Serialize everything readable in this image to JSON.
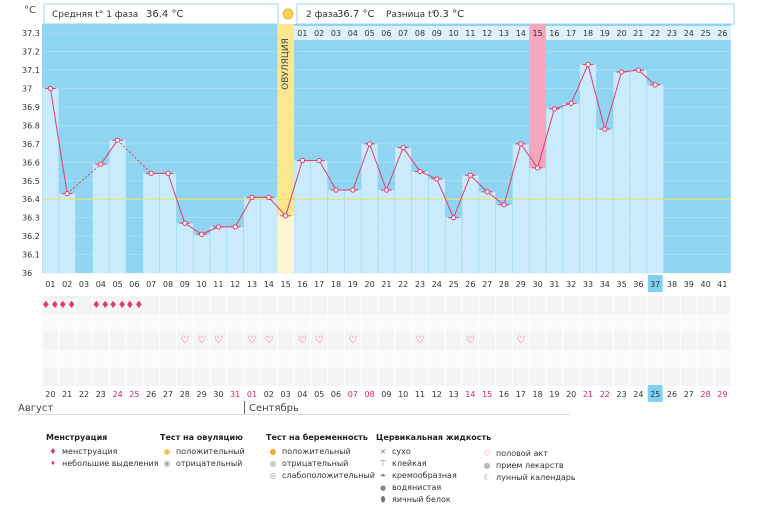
{
  "header": {
    "unit": "°C",
    "phase1_label": "Средняя t° 1 фаза",
    "phase1_value": "36.4 °C",
    "phase2_label": "2 фаза",
    "phase2_value": "36.7 °C",
    "diff_label": "Разница t°",
    "diff_value": "0.3 °C",
    "ovulation_label": "ОВУЛЯЦИЯ"
  },
  "chart_data": {
    "type": "line",
    "title": "",
    "ylabel": "°C",
    "ylim": [
      36,
      37.35
    ],
    "yticks": [
      "37.3",
      "37.2",
      "37.1",
      "37",
      "36.9",
      "36.8",
      "36.7",
      "36.6",
      "36.5",
      "36.4",
      "36.3",
      "36.2",
      "36.1",
      "36"
    ],
    "cycle_days": [
      "01",
      "02",
      "03",
      "04",
      "05",
      "06",
      "07",
      "08",
      "09",
      "10",
      "11",
      "12",
      "13",
      "14",
      "15",
      "16",
      "17",
      "18",
      "19",
      "20",
      "21",
      "22",
      "23",
      "24",
      "25",
      "26",
      "27",
      "28",
      "29",
      "30",
      "31",
      "32",
      "33",
      "34",
      "35",
      "36",
      "37",
      "38",
      "39",
      "40",
      "41"
    ],
    "temperatures": [
      37.0,
      36.43,
      null,
      36.59,
      36.72,
      null,
      36.54,
      36.54,
      36.27,
      36.21,
      36.25,
      36.25,
      36.41,
      36.41,
      36.31,
      36.61,
      36.61,
      36.45,
      36.45,
      36.7,
      36.45,
      36.68,
      36.55,
      36.51,
      36.3,
      36.53,
      36.44,
      36.37,
      36.7,
      36.57,
      36.89,
      36.92,
      37.13,
      36.78,
      37.09,
      37.1,
      37.02,
      null,
      null,
      null,
      null
    ],
    "coverline": 36.4,
    "ovulation_day": "15",
    "current_day": "37",
    "phase2_days": [
      "01",
      "02",
      "03",
      "04",
      "05",
      "06",
      "07",
      "08",
      "09",
      "10",
      "11",
      "12",
      "13",
      "14",
      "15",
      "16",
      "17",
      "18",
      "19",
      "20",
      "21",
      "22",
      "23",
      "24",
      "25",
      "26"
    ],
    "phase2_highlight_day": "15",
    "dates": [
      "20",
      "21",
      "22",
      "23",
      "24",
      "25",
      "26",
      "27",
      "28",
      "29",
      "30",
      "31",
      "01",
      "02",
      "03",
      "04",
      "05",
      "06",
      "07",
      "08",
      "09",
      "10",
      "11",
      "12",
      "13",
      "14",
      "15",
      "16",
      "17",
      "18",
      "19",
      "20",
      "21",
      "22",
      "23",
      "24",
      "25",
      "26",
      "27",
      "28",
      "29"
    ],
    "weekend_dates_idx": [
      4,
      5,
      11,
      12,
      18,
      19,
      25,
      26,
      32,
      33,
      39,
      40
    ],
    "today_date": "25",
    "menstruation_days": [
      "01",
      "02",
      "04",
      "05",
      "06"
    ],
    "intercourse_days": [
      "09",
      "10",
      "11",
      "13",
      "14",
      "16",
      "17",
      "19",
      "23",
      "26",
      "29"
    ]
  },
  "months": {
    "first": "Август",
    "second": "Сентябрь"
  },
  "legend": {
    "menstruation": {
      "title": "Менструация",
      "items": [
        "менструация",
        "небольшие выделения"
      ]
    },
    "ovulation_test": {
      "title": "Тест на овуляцию",
      "items": [
        "положительный",
        "отрицательный"
      ]
    },
    "pregnancy_test": {
      "title": "Тест на беременность",
      "items": [
        "положительный",
        "отрицательный",
        "слабоположительный"
      ]
    },
    "cervical": {
      "title": "Цервикальная жидкость",
      "items": [
        "сухо",
        "клейкая",
        "кремообразная",
        "водянистая",
        "яичный белок"
      ]
    },
    "other": {
      "items": [
        "половой акт",
        "прием лекарств",
        "лунный календарь"
      ]
    }
  },
  "colors": {
    "sky": "#8fd4f0",
    "bar": "#c9ebfc",
    "line": "#e03c6e",
    "ovulation": "#fbe78e",
    "highlight": "#f7a6c0",
    "coverline": "#e8e07a",
    "today": "#7fd0f2"
  }
}
